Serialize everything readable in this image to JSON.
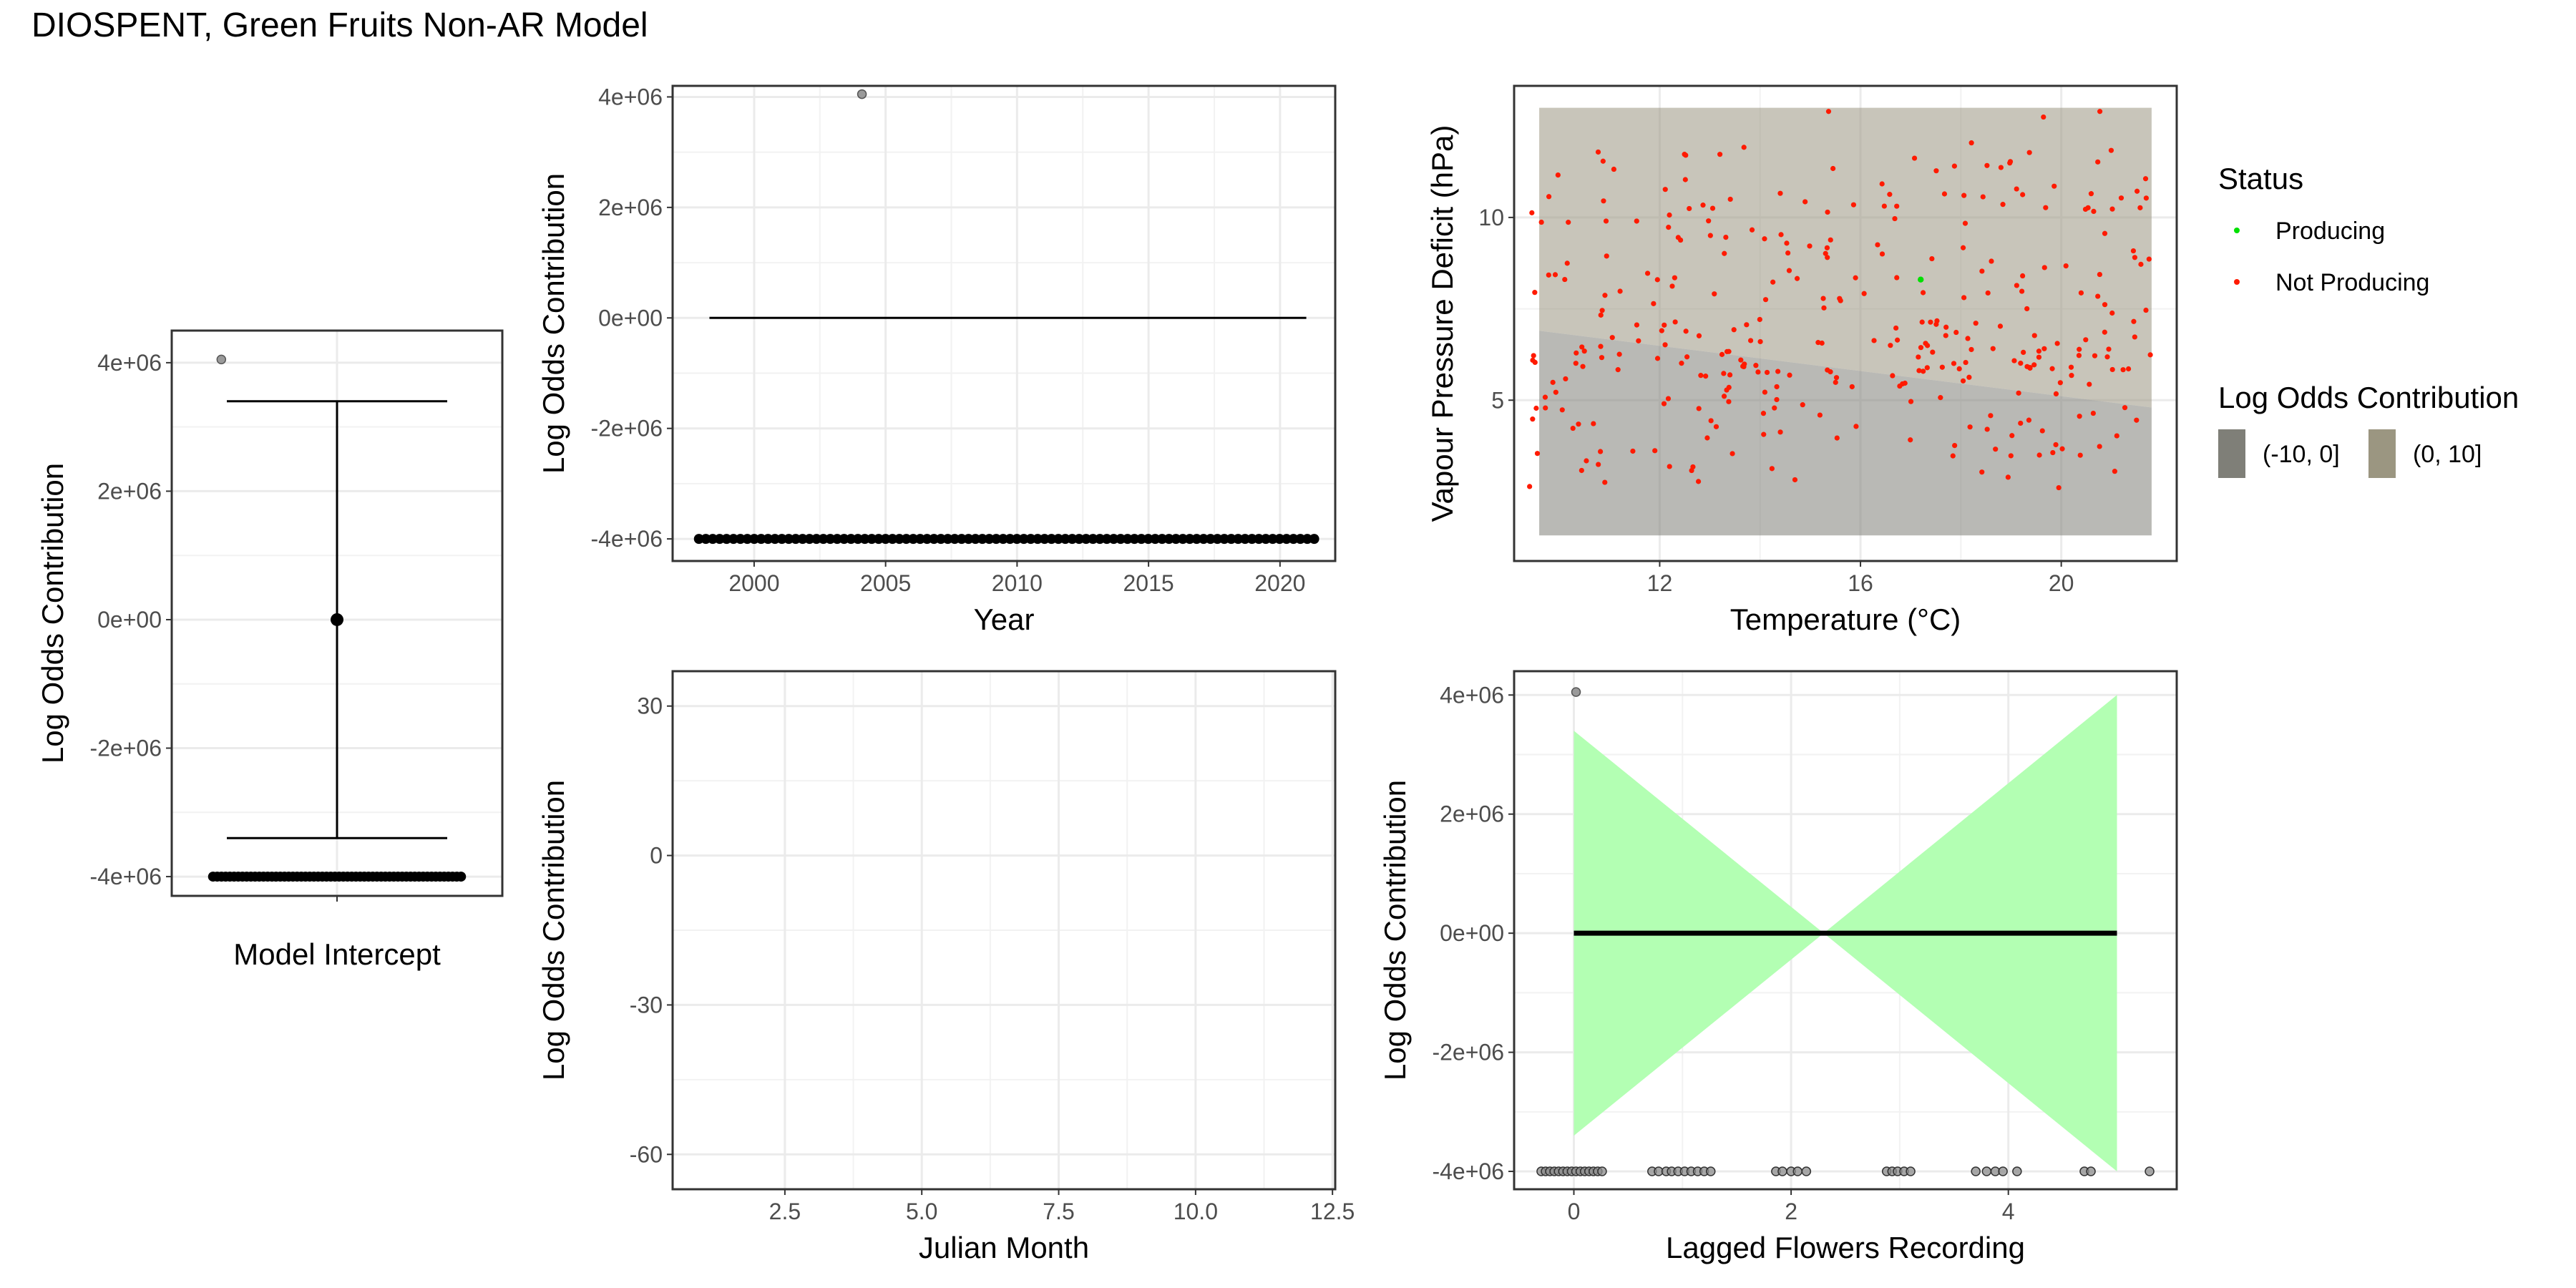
{
  "title": "DIOSPENT, Green Fruits Non-AR Model",
  "chart_data": [
    {
      "id": "intercept",
      "type": "scatter",
      "xlabel": "Model Intercept",
      "ylabel": "Log Odds Contribution",
      "x_categories": [
        ""
      ],
      "ylim": [
        -4300000,
        4500000
      ],
      "yticks": [
        -4000000,
        -2000000,
        0,
        2000000,
        4000000
      ],
      "ytick_labels": [
        "-4e+06",
        "-2e+06",
        "0e+00",
        "2e+06",
        "4e+06"
      ],
      "point": {
        "x": 0,
        "y": 0
      },
      "errorbar": {
        "lower": -3400000,
        "upper": 3400000
      },
      "rug_points": {
        "y": -4000000,
        "xmin": -0.45,
        "xmax": 0.45,
        "count": 60
      },
      "outliers": [
        {
          "x": -0.42,
          "y": 4050000
        }
      ]
    },
    {
      "id": "year",
      "type": "line",
      "xlabel": "Year",
      "ylabel": "Log Odds Contribution",
      "xlim": [
        1996.9,
        2022.1
      ],
      "xticks": [
        2000,
        2005,
        2010,
        2015,
        2020
      ],
      "xtick_labels": [
        "2000",
        "2005",
        "2010",
        "2015",
        "2020"
      ],
      "ylim": [
        -4400000,
        4200000
      ],
      "yticks": [
        -4000000,
        -2000000,
        0,
        2000000,
        4000000
      ],
      "ytick_labels": [
        "-4e+06",
        "-2e+06",
        "0e+00",
        "2e+06",
        "4e+06"
      ],
      "line": {
        "x": [
          1998.3,
          2021.0
        ],
        "y": [
          0,
          0
        ]
      },
      "rug_points": {
        "y": -4000000,
        "xmin": 1997.9,
        "xmax": 2021.3,
        "count": 90
      },
      "outliers": [
        {
          "x": 2004.1,
          "y": 4050000
        }
      ]
    },
    {
      "id": "temp_vpd",
      "type": "scatter",
      "xlabel": "Temperature (°C)",
      "ylabel": "Vapour Pressure Deficit (hPa)",
      "xlim": [
        9.1,
        22.3
      ],
      "xticks": [
        12,
        16,
        20
      ],
      "xtick_labels": [
        "12",
        "16",
        "20"
      ],
      "ylim": [
        0.6,
        13.6
      ],
      "yticks": [
        5,
        10
      ],
      "ytick_labels": [
        "5",
        "10"
      ],
      "region": {
        "xmin": 9.6,
        "xmax": 21.8,
        "ymin": 1.3,
        "ymax": 13.0
      },
      "boundary": {
        "x": [
          9.6,
          21.8
        ],
        "y": [
          6.9,
          4.8
        ]
      },
      "producing_points": [
        {
          "x": 17.2,
          "y": 8.3
        }
      ],
      "not_producing_count": 330,
      "legend": {
        "status_title": "Status",
        "status_items": [
          {
            "label": "Producing",
            "color": "#00e000"
          },
          {
            "label": "Not Producing",
            "color": "#ff1a00"
          }
        ],
        "fill_title": "Log Odds Contribution",
        "fill_items": [
          {
            "label": "(-10, 0]",
            "color": "#7f7f78"
          },
          {
            "label": "(0, 10]",
            "color": "#9b9681"
          }
        ]
      }
    },
    {
      "id": "julian",
      "type": "line",
      "xlabel": "Julian Month",
      "ylabel": "Log Odds Contribution",
      "xlim": [
        0.45,
        12.55
      ],
      "xticks": [
        2.5,
        5.0,
        7.5,
        10.0,
        12.5
      ],
      "xtick_labels": [
        "2.5",
        "5.0",
        "7.5",
        "10.0",
        "12.5"
      ],
      "ylim": [
        -67,
        37
      ],
      "yticks": [
        -60,
        -30,
        0,
        30
      ],
      "ytick_labels": [
        "-60",
        "-30",
        "0",
        "30"
      ]
    },
    {
      "id": "flowers",
      "type": "line",
      "xlabel": "Lagged Flowers Recording",
      "ylabel": "Log Odds Contribution",
      "xlim": [
        -0.55,
        5.55
      ],
      "xticks": [
        0,
        2,
        4
      ],
      "xtick_labels": [
        "0",
        "2",
        "4"
      ],
      "ylim": [
        -4300000,
        4400000
      ],
      "yticks": [
        -4000000,
        -2000000,
        0,
        2000000,
        4000000
      ],
      "ytick_labels": [
        "-4e+06",
        "-2e+06",
        "0e+00",
        "2e+06",
        "4e+06"
      ],
      "line": {
        "x": [
          0.0,
          5.0
        ],
        "y": [
          0,
          0
        ]
      },
      "ribbon": {
        "x": [
          0.0,
          2.3,
          5.0
        ],
        "upper": [
          3400000,
          0,
          4000000
        ],
        "lower": [
          -3400000,
          0,
          -4000000
        ],
        "color": "#b3ffb3"
      },
      "rug_points": {
        "y": -4000000,
        "x": [
          -0.3,
          -0.26,
          -0.22,
          -0.18,
          -0.14,
          -0.1,
          -0.06,
          -0.02,
          0.02,
          0.06,
          0.1,
          0.14,
          0.18,
          0.22,
          0.26,
          0.72,
          0.78,
          0.85,
          0.9,
          0.96,
          1.02,
          1.08,
          1.14,
          1.2,
          1.26,
          1.86,
          1.92,
          2.0,
          2.06,
          2.14,
          2.88,
          2.93,
          2.98,
          3.04,
          3.1,
          3.7,
          3.8,
          3.88,
          3.95,
          4.08,
          4.7,
          4.76,
          5.3
        ]
      },
      "outliers": [
        {
          "x": 0.02,
          "y": 4050000
        }
      ]
    }
  ]
}
